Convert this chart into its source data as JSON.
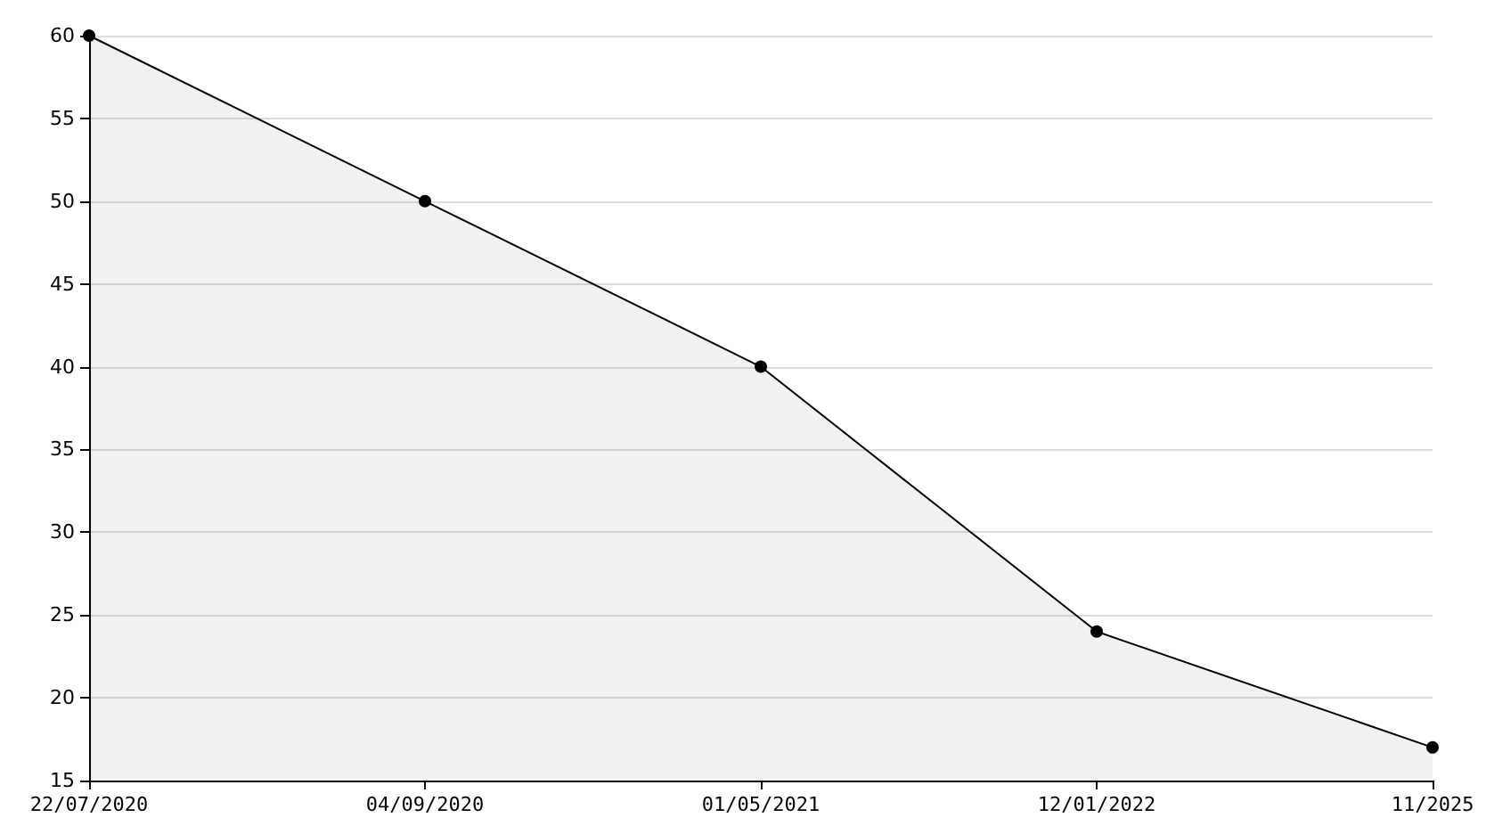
{
  "chart_data": {
    "type": "area",
    "categories": [
      "22/07/2020",
      "04/09/2020",
      "01/05/2021",
      "12/01/2022",
      "11/2025"
    ],
    "series": [
      {
        "color": "#000000",
        "values": [
          60,
          50,
          40,
          24,
          17
        ]
      }
    ],
    "ylim": [
      15,
      60
    ],
    "yticks": [
      15,
      20,
      25,
      30,
      35,
      40,
      45,
      50,
      55,
      60
    ],
    "grid": "y",
    "marker": "circle",
    "line_style": "solid"
  }
}
